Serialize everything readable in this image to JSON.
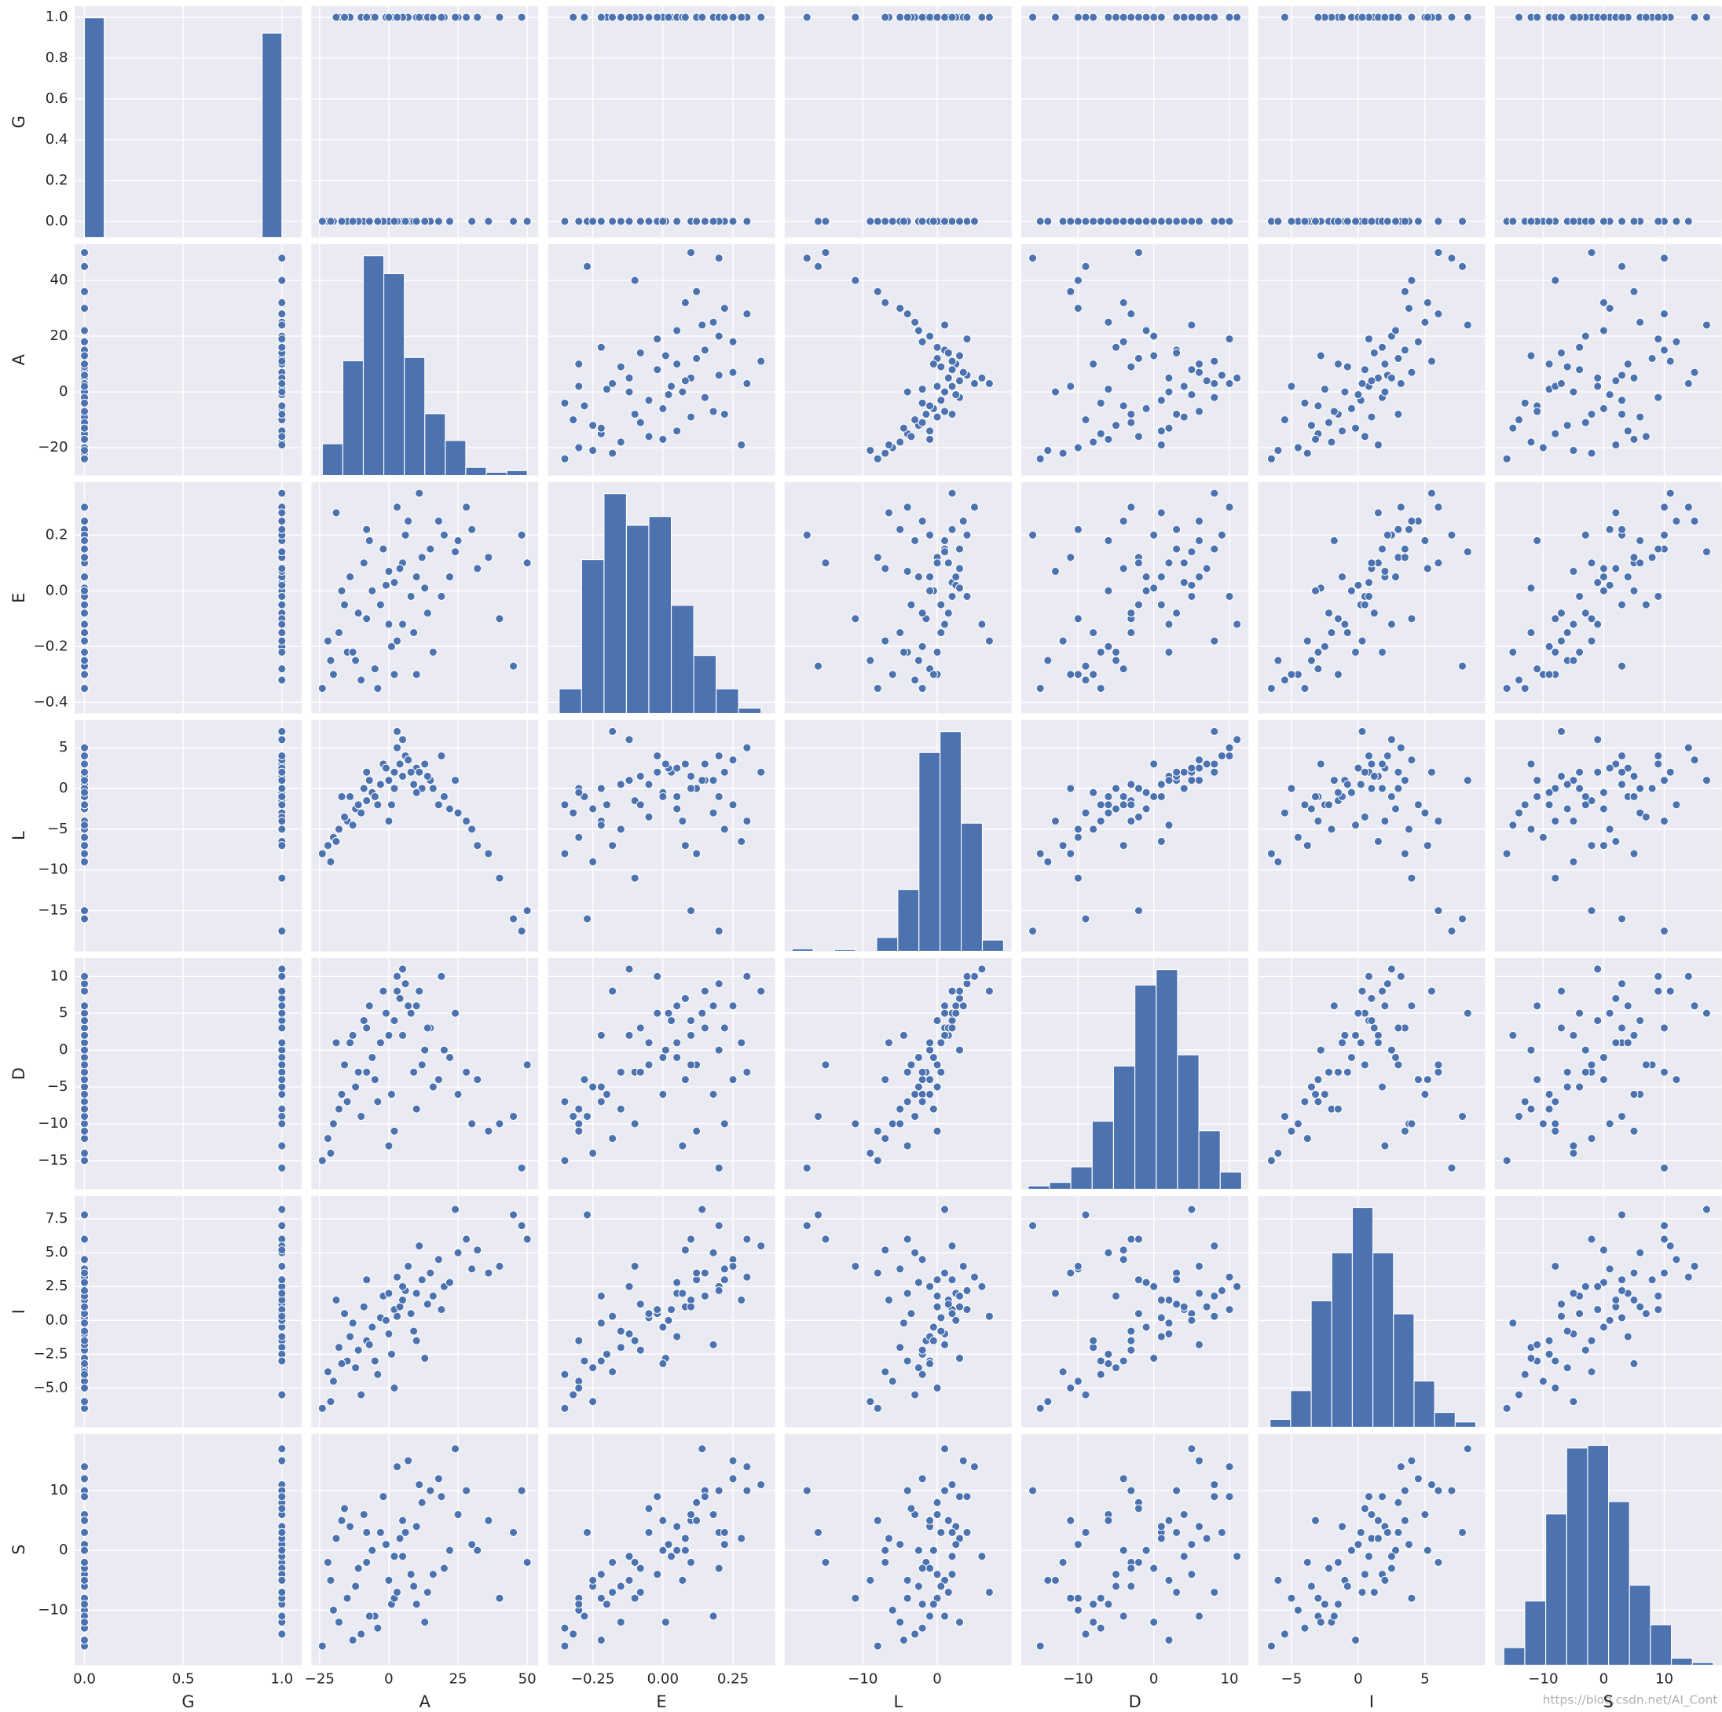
{
  "chart_data": {
    "type": "pairplot",
    "color": "#4c72b0",
    "grid": true,
    "watermark": "https://blog.csdn.net/AI_Cont",
    "variables": [
      "G",
      "A",
      "E",
      "L",
      "D",
      "I",
      "S"
    ],
    "axes": [
      {
        "xlim": [
          -0.05,
          1.1
        ],
        "ylim": [
          -0.08,
          1.054
        ],
        "xticks": [
          {
            "value": 0,
            "label": "0.0"
          },
          {
            "value": 0.5,
            "label": "0.5"
          },
          {
            "value": 1,
            "label": "1.0"
          }
        ],
        "yticks": [
          {
            "value": 0,
            "label": "0.0"
          },
          0.2,
          0.4,
          0.6,
          0.8,
          {
            "value": 1,
            "label": "1.0"
          }
        ]
      },
      {
        "xlim": [
          -28,
          54
        ],
        "ylim": [
          -30,
          53
        ],
        "xticks": [
          {
            "value": -25,
            "label": "−25"
          },
          0,
          25,
          50
        ],
        "yticks": [
          {
            "value": -20,
            "label": "−20"
          },
          0,
          20,
          40
        ]
      },
      {
        "xlim": [
          -0.41,
          0.4
        ],
        "ylim": [
          -0.44,
          0.39
        ],
        "xticks": [
          {
            "value": -0.25,
            "label": "−0.25"
          },
          {
            "value": 0,
            "label": "0.00"
          },
          0.25
        ],
        "yticks": [
          {
            "value": -0.4,
            "label": "−0.4"
          },
          {
            "value": -0.2,
            "label": "−0.2"
          },
          {
            "value": 0,
            "label": "0.0"
          },
          0.2
        ]
      },
      {
        "xlim": [
          -20.5,
          10
        ],
        "ylim": [
          -20,
          8.4
        ],
        "xticks": [
          {
            "value": -10,
            "label": "−10"
          },
          0
        ],
        "yticks": [
          {
            "value": -15,
            "label": "−15"
          },
          {
            "value": -10,
            "label": "−10"
          },
          {
            "value": -5,
            "label": "−5"
          },
          0,
          5
        ]
      },
      {
        "xlim": [
          -17.5,
          12.5
        ],
        "ylim": [
          -18.9,
          12.5
        ],
        "xticks": [
          {
            "value": -10,
            "label": "−10"
          },
          0,
          10
        ],
        "yticks": [
          {
            "value": -15,
            "label": "−15"
          },
          {
            "value": -10,
            "label": "−10"
          },
          {
            "value": -5,
            "label": "−5"
          },
          0,
          5,
          10
        ]
      },
      {
        "xlim": [
          -7.5,
          9.5
        ],
        "ylim": [
          -7.9,
          9.2
        ],
        "xticks": [
          {
            "value": -5,
            "label": "−5"
          },
          0,
          5
        ],
        "yticks": [
          {
            "value": -5,
            "label": "−5.0"
          },
          {
            "value": -2.5,
            "label": "−2.5"
          },
          {
            "value": 0,
            "label": "0.0"
          },
          2.5,
          {
            "value": 5,
            "label": "5.0"
          },
          7.5
        ]
      },
      {
        "xlim": [
          -18,
          19.5
        ],
        "ylim": [
          -19.2,
          19.5
        ],
        "xticks": [
          {
            "value": -10,
            "label": "−10"
          },
          0,
          10
        ],
        "yticks": [
          {
            "value": -10,
            "label": "−10"
          },
          0,
          10
        ]
      }
    ],
    "hist": [
      {
        "bins": [
          0,
          0.1,
          0.2,
          0.3,
          0.4,
          0.5,
          0.6,
          0.7,
          0.8,
          0.9,
          1.0
        ],
        "counts": [
          518,
          0,
          0,
          0,
          0,
          0,
          0,
          0,
          0,
          482
        ]
      },
      {
        "bins": [
          -24,
          -16.6,
          -9.2,
          -1.8,
          5.6,
          13,
          20.4,
          27.8,
          35.2,
          42.6,
          50
        ],
        "counts": [
          39,
          141,
          270,
          248,
          145,
          76,
          43,
          10,
          4,
          6
        ]
      },
      {
        "bins": [
          -0.37,
          -0.29,
          -0.21,
          -0.13,
          -0.05,
          0.03,
          0.11,
          0.19,
          0.27,
          0.35
        ],
        "counts": [
          28,
          175,
          250,
          214,
          224,
          123,
          66,
          28,
          6
        ]
      },
      {
        "bins": [
          -19.5,
          -16.66,
          -13.82,
          -10.98,
          -8.14,
          -5.3,
          -2.46,
          0.38,
          3.22,
          6.06,
          8.9
        ],
        "counts": [
          3,
          0,
          2,
          0,
          16,
          71,
          228,
          252,
          147,
          13
        ]
      },
      {
        "bins": [
          -16.6,
          -13.78,
          -10.96,
          -8.14,
          -5.32,
          -2.5,
          0.32,
          3.14,
          5.96,
          8.78,
          11.6
        ],
        "counts": [
          4,
          8,
          26,
          79,
          143,
          237,
          255,
          156,
          68,
          20
        ]
      },
      {
        "bins": [
          -6.6,
          -5.06,
          -3.52,
          -1.98,
          -0.44,
          1.1,
          2.64,
          4.18,
          5.72,
          7.26,
          8.8
        ],
        "counts": [
          9,
          42,
          145,
          200,
          252,
          200,
          130,
          53,
          17,
          6
        ]
      },
      {
        "bins": [
          -16.5,
          -13.04,
          -9.58,
          -6.12,
          -2.66,
          0.8,
          4.26,
          7.72,
          11.18,
          14.64,
          18.1
        ],
        "counts": [
          20,
          73,
          172,
          247,
          250,
          186,
          91,
          46,
          8,
          3
        ]
      }
    ],
    "rows": [
      [
        0,
        -15,
        -0.22,
        -4,
        -7,
        -3.0,
        -8
      ],
      [
        1,
        -8,
        -0.1,
        -1.5,
        -3,
        -1.5,
        -2
      ],
      [
        0,
        -3,
        -0.05,
        0.5,
        1,
        0.2,
        3
      ],
      [
        1,
        2,
        0.03,
        2,
        4,
        0.8,
        -1
      ],
      [
        0,
        5,
        0.1,
        1.5,
        2,
        1.5,
        5
      ],
      [
        1,
        10,
        0.05,
        2.5,
        6,
        2.0,
        4
      ],
      [
        0,
        15,
        0.15,
        1,
        3,
        3.5,
        10
      ],
      [
        1,
        20,
        0.2,
        -1,
        0,
        2.5,
        -3
      ],
      [
        0,
        -20,
        -0.3,
        -6,
        -10,
        -4.5,
        -10
      ],
      [
        1,
        -18,
        -0.15,
        -5,
        -8,
        -2.0,
        -12
      ],
      [
        0,
        -12,
        -0.25,
        -2.5,
        -5,
        -3.5,
        -6
      ],
      [
        1,
        -6,
        0.0,
        -0.5,
        -1,
        -0.5,
        0
      ],
      [
        0,
        0,
        -0.12,
        1,
        2,
        -1.0,
        -5
      ],
      [
        1,
        4,
        0.08,
        3,
        7,
        1.0,
        2
      ],
      [
        0,
        8,
        -0.02,
        2,
        5,
        0.5,
        -4
      ],
      [
        1,
        12,
        0.12,
        0,
        -2,
        3.0,
        8
      ],
      [
        0,
        18,
        0.25,
        -2,
        -4,
        4.5,
        12
      ],
      [
        1,
        25,
        0.18,
        -3,
        -6,
        5.0,
        6
      ],
      [
        0,
        30,
        0.22,
        -5,
        -10,
        3.8,
        1
      ],
      [
        1,
        -10,
        -0.32,
        -3,
        -9,
        -5.5,
        -14
      ],
      [
        0,
        -2,
        0.15,
        3,
        8,
        1.8,
        9
      ],
      [
        1,
        1,
        -0.2,
        -2,
        -6,
        -2.5,
        -9
      ],
      [
        0,
        6,
        0.2,
        4,
        9,
        2.2,
        3
      ],
      [
        1,
        -14,
        0.05,
        -1,
        1,
        -1.2,
        4
      ],
      [
        0,
        -22,
        -0.18,
        -7,
        -12,
        -3.8,
        -2
      ],
      [
        1,
        14,
        -0.08,
        1.5,
        3,
        1.2,
        -7
      ],
      [
        0,
        3,
        0.3,
        5,
        10,
        3.2,
        14
      ],
      [
        1,
        -5,
        -0.28,
        -1,
        -4,
        -3.0,
        -11
      ],
      [
        0,
        22,
        0.05,
        -2.5,
        -1,
        2.8,
        0
      ],
      [
        1,
        -16,
        -0.05,
        -3.5,
        -2,
        0.5,
        7
      ],
      [
        0,
        9,
        -0.15,
        0.5,
        -3,
        -0.8,
        -6
      ],
      [
        1,
        -1,
        0.02,
        2.5,
        5,
        0.0,
        1
      ],
      [
        0,
        -9,
        0.1,
        0,
        4,
        1.0,
        6
      ],
      [
        1,
        16,
        -0.22,
        0,
        -5,
        1.8,
        -4
      ],
      [
        0,
        -24,
        -0.35,
        -8,
        -15,
        -6.5,
        -16
      ],
      [
        1,
        28,
        0.3,
        -4,
        -3,
        6.0,
        10
      ],
      [
        0,
        -4,
        -0.35,
        -2,
        -7,
        -4.0,
        -13
      ],
      [
        1,
        7,
        0.25,
        3.5,
        6,
        4.0,
        15
      ],
      [
        0,
        -11,
        -0.08,
        -2,
        -3,
        -2.2,
        -3
      ],
      [
        1,
        11,
        0.35,
        2,
        8,
        5.5,
        11
      ],
      [
        0,
        45,
        -0.27,
        -16,
        -9,
        7.8,
        3
      ],
      [
        1,
        48,
        0.2,
        -17.5,
        -16,
        7.0,
        10
      ],
      [
        0,
        50,
        0.1,
        -15,
        -2,
        6.0,
        -2
      ],
      [
        1,
        40,
        -0.1,
        -11,
        -10,
        4.0,
        -8
      ],
      [
        0,
        36,
        0.12,
        -8,
        -11,
        3.5,
        5
      ],
      [
        1,
        -19,
        0.28,
        -6.5,
        1,
        1.5,
        2
      ],
      [
        0,
        2,
        -0.3,
        0,
        -11,
        -5.0,
        -8
      ],
      [
        1,
        5,
        -0.12,
        6,
        11,
        2.5,
        -1
      ],
      [
        0,
        -7,
        0.18,
        1,
        6,
        -1.8,
        -11
      ],
      [
        1,
        19,
        -0.02,
        4,
        10,
        0.8,
        9
      ],
      [
        0,
        -13,
        -0.22,
        -4.5,
        2,
        -0.2,
        -15
      ],
      [
        1,
        0,
        0.07,
        -4,
        -13,
        2.0,
        -5
      ],
      [
        0,
        13,
        0.01,
        3,
        0,
        -2.8,
        -12
      ],
      [
        1,
        24,
        0.14,
        1,
        5,
        8.2,
        17
      ],
      [
        0,
        -17,
        0.0,
        -1,
        -6,
        -3.2,
        5
      ],
      [
        1,
        3,
        -0.18,
        7,
        8,
        0.3,
        -7
      ],
      [
        0,
        -21,
        -0.25,
        -9,
        -14,
        -6.0,
        -5
      ],
      [
        1,
        -8,
        0.22,
        2,
        3,
        3.0,
        3
      ],
      [
        0,
        10,
        -0.3,
        -0.5,
        -8,
        -1.5,
        -9
      ],
      [
        1,
        32,
        0.08,
        -7,
        -4,
        5.2,
        0
      ]
    ]
  }
}
